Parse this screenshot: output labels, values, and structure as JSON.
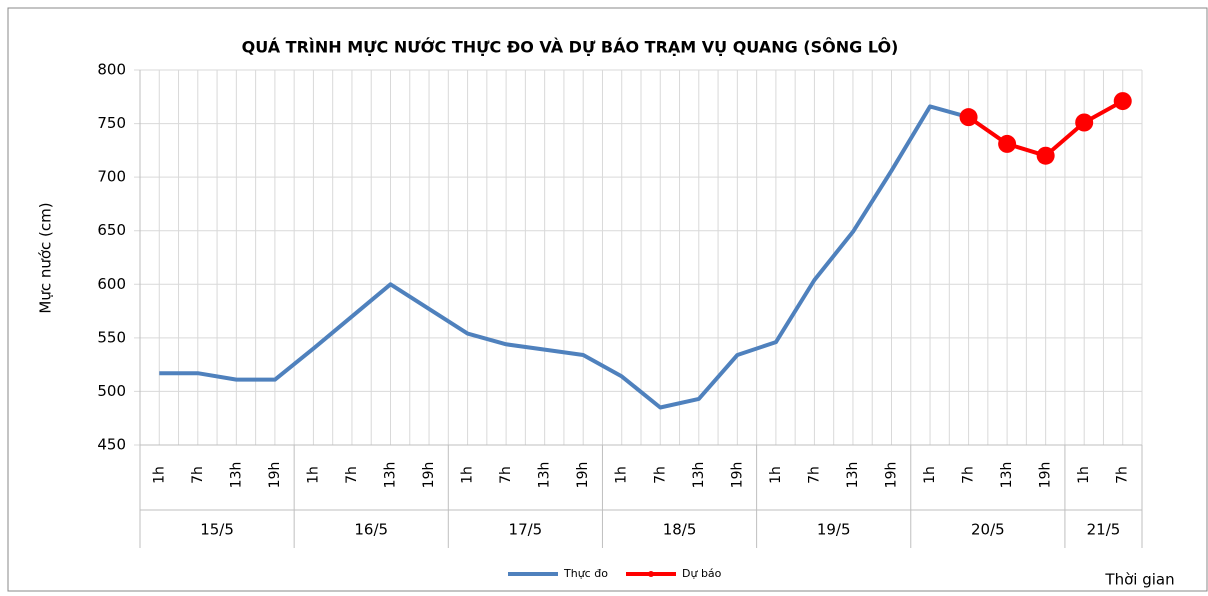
{
  "chart_data": {
    "type": "line",
    "title": "QUÁ TRÌNH MỰC NƯỚC THỰC ĐO VÀ DỰ BÁO TRẠM VỤ QUANG (SÔNG LÔ)",
    "y_label": "Mực nước (cm)",
    "x_label": "Thời gian",
    "categories": [
      "1h",
      "7h",
      "13h",
      "19h",
      "1h",
      "7h",
      "13h",
      "19h",
      "1h",
      "7h",
      "13h",
      "19h",
      "1h",
      "7h",
      "13h",
      "19h",
      "1h",
      "7h",
      "13h",
      "19h",
      "1h",
      "7h",
      "13h",
      "19h",
      "1h",
      "7h"
    ],
    "groups": [
      {
        "label": "15/5",
        "size": 4
      },
      {
        "label": "16/5",
        "size": 4
      },
      {
        "label": "17/5",
        "size": 4
      },
      {
        "label": "18/5",
        "size": 4
      },
      {
        "label": "19/5",
        "size": 4
      },
      {
        "label": "20/5",
        "size": 4
      },
      {
        "label": "21/5",
        "size": 2
      }
    ],
    "series": [
      {
        "name": "Thực đo",
        "color": "#4f81bd",
        "markers": false,
        "values": [
          517,
          517,
          511,
          511,
          540,
          570,
          600,
          577,
          554,
          544,
          539,
          534,
          514,
          485,
          493,
          534,
          546,
          604,
          649,
          706,
          766,
          756,
          null,
          null,
          null,
          null
        ]
      },
      {
        "name": "Dự báo",
        "color": "#ff0000",
        "markers": true,
        "values": [
          null,
          null,
          null,
          null,
          null,
          null,
          null,
          null,
          null,
          null,
          null,
          null,
          null,
          null,
          null,
          null,
          null,
          null,
          null,
          null,
          null,
          756,
          731,
          720,
          751,
          771
        ]
      }
    ],
    "ylim": [
      450,
      800
    ],
    "yticks": [
      450,
      500,
      550,
      600,
      650,
      700,
      750,
      800
    ],
    "grid": true,
    "legend": "bottom"
  }
}
